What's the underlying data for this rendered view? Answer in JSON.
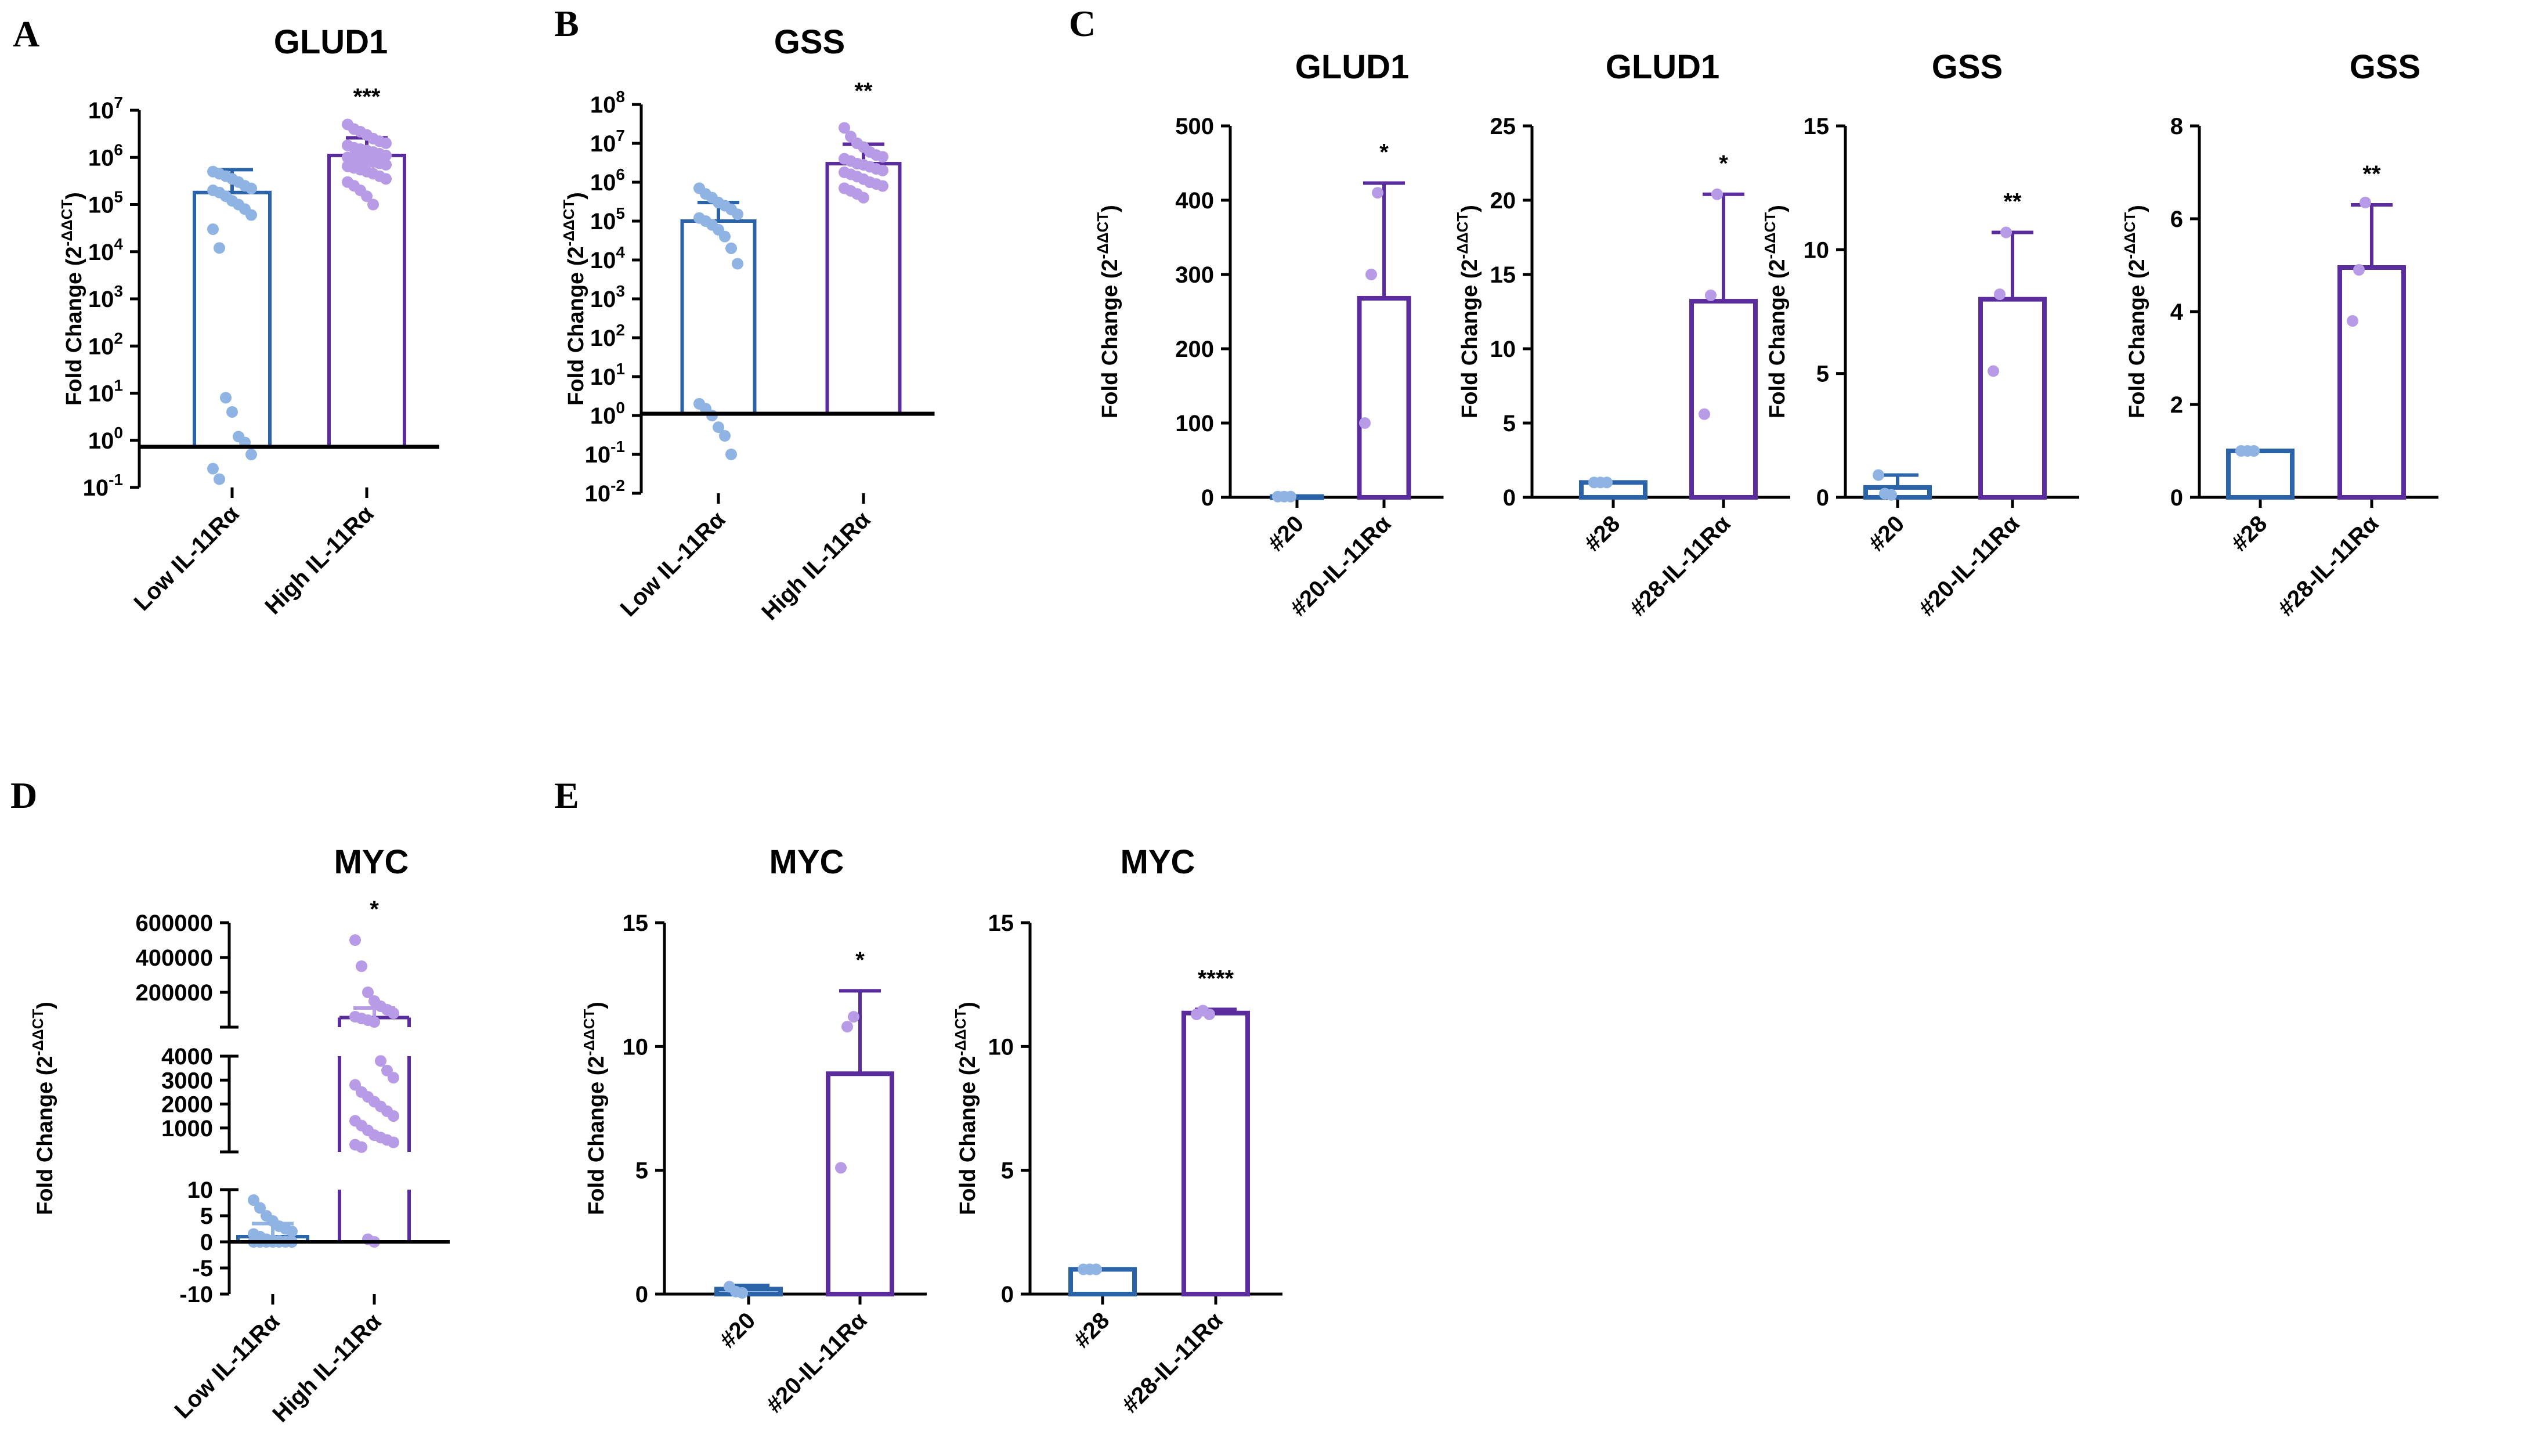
{
  "colors": {
    "low_fill_point": "#8fb3e3",
    "low_bar": "#2b63a8",
    "high_point": "#b79be6",
    "high_bar": "#5a2c9e",
    "axis": "#000000"
  },
  "panel_letters": [
    "A",
    "B",
    "C",
    "D",
    "E"
  ],
  "ylabel_text": "Fold Change (2",
  "ylabel_sup": "-ΔΔCT",
  "ylabel_close": ")",
  "chart_data": [
    {
      "id": "A",
      "type": "bar",
      "scale": "log",
      "title": "GLUD1",
      "ylabel": "Fold Change (2^-ΔΔCT)",
      "ylim": [
        0.1,
        10000000
      ],
      "ticks": [
        {
          "v": 0.1,
          "b": "10",
          "e": "-1"
        },
        {
          "v": 1,
          "b": "10",
          "e": "0"
        },
        {
          "v": 10,
          "b": "10",
          "e": "1"
        },
        {
          "v": 100,
          "b": "10",
          "e": "2"
        },
        {
          "v": 1000,
          "b": "10",
          "e": "3"
        },
        {
          "v": 10000,
          "b": "10",
          "e": "4"
        },
        {
          "v": 100000,
          "b": "10",
          "e": "5"
        },
        {
          "v": 1000000,
          "b": "10",
          "e": "6"
        },
        {
          "v": 10000000,
          "b": "10",
          "e": "7"
        }
      ],
      "baseline": 1,
      "categories": [
        "Low IL-11Rα",
        "High IL-11Rα"
      ],
      "values": [
        180000,
        1100000
      ],
      "errors": [
        [
          180000,
          550000
        ],
        [
          1100000,
          2600000
        ]
      ],
      "points": [
        [
          500000,
          450000,
          400000,
          350000,
          300000,
          250000,
          220000,
          200000,
          180000,
          150000,
          120000,
          100000,
          80000,
          60000,
          30000,
          12000,
          8,
          4,
          1.2,
          0.9,
          0.5,
          0.25,
          0.15
        ],
        [
          5000000,
          4000000,
          3500000,
          3000000,
          2500000,
          2200000,
          2000000,
          1800000,
          1600000,
          1500000,
          1400000,
          1300000,
          1200000,
          1100000,
          1000000,
          950000,
          900000,
          850000,
          800000,
          750000,
          700000,
          650000,
          600000,
          550000,
          500000,
          450000,
          400000,
          350000,
          300000,
          250000,
          200000,
          150000,
          100000
        ]
      ],
      "significance": "***"
    },
    {
      "id": "B",
      "type": "bar",
      "scale": "log",
      "title": "GSS",
      "ylabel": "Fold Change (2^-ΔΔCT)",
      "ylim": [
        0.01,
        100000000
      ],
      "ticks": [
        {
          "v": 0.01,
          "b": "10",
          "e": "-2"
        },
        {
          "v": 0.1,
          "b": "10",
          "e": "-1"
        },
        {
          "v": 1,
          "b": "10",
          "e": "0"
        },
        {
          "v": 10,
          "b": "10",
          "e": "1"
        },
        {
          "v": 100,
          "b": "10",
          "e": "2"
        },
        {
          "v": 1000,
          "b": "10",
          "e": "3"
        },
        {
          "v": 10000,
          "b": "10",
          "e": "4"
        },
        {
          "v": 100000,
          "b": "10",
          "e": "5"
        },
        {
          "v": 1000000,
          "b": "10",
          "e": "6"
        },
        {
          "v": 10000000,
          "b": "10",
          "e": "7"
        },
        {
          "v": 100000000,
          "b": "10",
          "e": "8"
        }
      ],
      "baseline": 1,
      "categories": [
        "Low IL-11Rα",
        "High IL-11Rα"
      ],
      "values": [
        100000,
        3000000
      ],
      "errors": [
        [
          100000,
          300000
        ],
        [
          3000000,
          9500000
        ]
      ],
      "points": [
        [
          700000,
          500000,
          400000,
          300000,
          250000,
          200000,
          150000,
          120000,
          100000,
          80000,
          60000,
          40000,
          20000,
          8000,
          2,
          1.5,
          1,
          0.5,
          0.3,
          0.1
        ],
        [
          25000000,
          15000000,
          10000000,
          8000000,
          6000000,
          5000000,
          4500000,
          4000000,
          3500000,
          3000000,
          2800000,
          2500000,
          2200000,
          2000000,
          1800000,
          1600000,
          1400000,
          1200000,
          1000000,
          900000,
          800000,
          700000,
          600000,
          500000,
          400000
        ]
      ],
      "significance": "**"
    },
    {
      "id": "C1",
      "type": "bar",
      "scale": "linear",
      "title": "GLUD1",
      "ylabel": "Fold Change (2^-ΔΔCT)",
      "ylim": [
        0,
        500
      ],
      "ticks": [
        0,
        100,
        200,
        300,
        400,
        500
      ],
      "categories": [
        "#20",
        "#20-IL-11Rα"
      ],
      "values": [
        1,
        268
      ],
      "errors": [
        [
          1,
          1
        ],
        [
          268,
          423
        ]
      ],
      "points": [
        [
          1,
          1,
          1
        ],
        [
          100,
          300,
          410
        ]
      ],
      "significance": "*"
    },
    {
      "id": "C2",
      "type": "bar",
      "scale": "linear",
      "title": "GLUD1",
      "ylabel": "Fold Change (2^-ΔΔCT)",
      "ylim": [
        0,
        25
      ],
      "ticks": [
        0,
        5,
        10,
        15,
        20,
        25
      ],
      "categories": [
        "#28",
        "#28-IL-11Rα"
      ],
      "values": [
        1,
        13.2
      ],
      "errors": [
        [
          1,
          1
        ],
        [
          13.2,
          20.4
        ]
      ],
      "points": [
        [
          1,
          1,
          1
        ],
        [
          5.6,
          13.6,
          20.4
        ]
      ],
      "significance": "*"
    },
    {
      "id": "C3",
      "type": "bar",
      "scale": "linear",
      "title": "GSS",
      "ylabel": "Fold Change (2^-ΔΔCT)",
      "ylim": [
        0,
        15
      ],
      "ticks": [
        0,
        5,
        10,
        15
      ],
      "categories": [
        "#20",
        "#20-IL-11Rα"
      ],
      "values": [
        0.4,
        8
      ],
      "errors": [
        [
          0.4,
          0.9
        ],
        [
          8,
          10.7
        ]
      ],
      "points": [
        [
          0.9,
          0.15,
          0.1
        ],
        [
          5.1,
          8.2,
          10.7
        ]
      ],
      "significance": "**"
    },
    {
      "id": "C4",
      "type": "bar",
      "scale": "linear",
      "title": "GSS",
      "ylabel": "Fold Change (2^-ΔΔCT)",
      "ylim": [
        0,
        8
      ],
      "ticks": [
        0,
        2,
        4,
        6,
        8
      ],
      "categories": [
        "#28",
        "#28-IL-11Rα"
      ],
      "values": [
        1,
        4.95
      ],
      "errors": [
        [
          1,
          1
        ],
        [
          4.95,
          6.3
        ]
      ],
      "points": [
        [
          1,
          1,
          1
        ],
        [
          3.8,
          4.9,
          6.35
        ]
      ],
      "significance": "**"
    },
    {
      "id": "D",
      "type": "bar",
      "scale": "broken",
      "title": "MYC",
      "ylabel": "Fold Change (2^-ΔΔCT)",
      "segments": [
        {
          "range": [
            -10,
            10
          ],
          "ticks": [
            -10,
            -5,
            0,
            5,
            10
          ]
        },
        {
          "range": [
            0,
            4000
          ],
          "ticks": [
            1000,
            2000,
            3000,
            4000
          ]
        },
        {
          "range": [
            0,
            600000
          ],
          "ticks": [
            200000,
            400000,
            600000
          ]
        }
      ],
      "categories": [
        "Low IL-11Rα",
        "High IL-11Rα"
      ],
      "values": [
        1,
        55000
      ],
      "errors": [
        [
          1,
          3.5
        ],
        [
          55000,
          110000
        ]
      ],
      "points": [
        [
          8,
          6.5,
          5,
          4,
          3,
          2.5,
          2,
          1.5,
          1,
          0.5,
          0.3,
          0.2,
          0.1,
          0,
          0,
          0,
          0,
          0,
          0,
          0,
          0,
          0,
          0,
          0
        ],
        [
          500000,
          350000,
          200000,
          150000,
          120000,
          100000,
          80000,
          60000,
          50000,
          40000,
          30000,
          3800,
          3400,
          3100,
          2800,
          2500,
          2300,
          2100,
          1900,
          1700,
          1500,
          1300,
          1100,
          900,
          700,
          600,
          500,
          400,
          300,
          200,
          0.5,
          0
        ]
      ],
      "significance": "*"
    },
    {
      "id": "E1",
      "type": "bar",
      "scale": "linear",
      "title": "MYC",
      "ylabel": "Fold Change (2^-ΔΔCT)",
      "ylim": [
        0,
        15
      ],
      "ticks": [
        0,
        5,
        10,
        15
      ],
      "categories": [
        "#20",
        "#20-IL-11Rα"
      ],
      "values": [
        0.2,
        8.9
      ],
      "errors": [
        [
          0.2,
          0.35
        ],
        [
          8.9,
          12.25
        ]
      ],
      "points": [
        [
          0.3,
          0.1,
          0.05
        ],
        [
          5.1,
          10.8,
          11.2
        ]
      ],
      "significance": "*"
    },
    {
      "id": "E2",
      "type": "bar",
      "scale": "linear",
      "title": "MYC",
      "ylabel": "Fold Change (2^-ΔΔCT)",
      "ylim": [
        0,
        15
      ],
      "ticks": [
        0,
        5,
        10,
        15
      ],
      "categories": [
        "#28",
        "#28-IL-11Rα"
      ],
      "values": [
        1,
        11.35
      ],
      "errors": [
        [
          1,
          1
        ],
        [
          11.35,
          11.5
        ]
      ],
      "points": [
        [
          1,
          1,
          1
        ],
        [
          11.3,
          11.45,
          11.3
        ]
      ],
      "significance": "****"
    }
  ]
}
